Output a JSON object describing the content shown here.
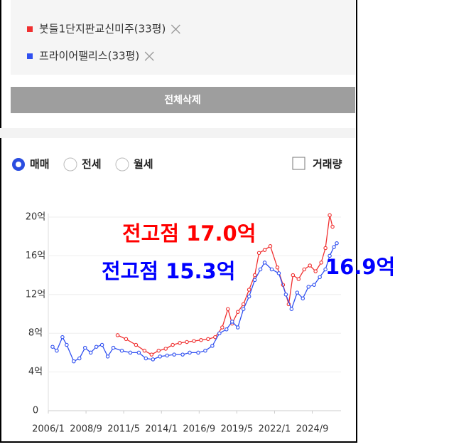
{
  "ui": {
    "button": "전체삭제",
    "radios": [
      "매매",
      "전세",
      "월세"
    ],
    "checkbox": "거래량"
  },
  "chart_data": {
    "type": "line",
    "annotations": [
      {
        "text": "전고점 17.0억",
        "color": "#ff0000"
      },
      {
        "text": "전고점 15.3억",
        "color": "#0000ff"
      },
      {
        "text": "16.9억",
        "color": "#0000ff"
      }
    ],
    "xlim": [
      2006,
      2026.7
    ],
    "xticks": [
      {
        "value": 2006.0,
        "label": "2006/1"
      },
      {
        "value": 2008.667,
        "label": "2008/9"
      },
      {
        "value": 2011.333,
        "label": "2011/5"
      },
      {
        "value": 2014.0,
        "label": "2014/1"
      },
      {
        "value": 2016.667,
        "label": "2016/9"
      },
      {
        "value": 2019.333,
        "label": "2019/5"
      },
      {
        "value": 2022.0,
        "label": "2022/1"
      },
      {
        "value": 2024.667,
        "label": "2024/9"
      }
    ],
    "ylim": [
      0,
      20
    ],
    "yticks": [
      0,
      {
        "value": 4,
        "label": "4억"
      },
      {
        "value": 8,
        "label": "8억"
      },
      {
        "value": 12,
        "label": "12억"
      },
      {
        "value": 16,
        "label": "16억"
      },
      {
        "value": 20,
        "label": "20억"
      }
    ],
    "grid": true,
    "series": [
      {
        "name": "붓들1단지판교신미주(33평)",
        "color": "#f03030",
        "x": [
          2010.9,
          2011.5,
          2012.2,
          2012.8,
          2013.3,
          2013.8,
          2014.3,
          2014.8,
          2015.3,
          2015.8,
          2016.3,
          2016.8,
          2017.3,
          2017.8,
          2018.3,
          2018.7,
          2019.0,
          2019.4,
          2019.8,
          2020.2,
          2020.6,
          2020.9,
          2021.3,
          2021.7,
          2022.2,
          2022.6,
          2023.0,
          2023.3,
          2023.7,
          2024.1,
          2024.5,
          2024.9,
          2025.3,
          2025.6,
          2025.9,
          2026.1
        ],
        "values": [
          7.8,
          7.4,
          6.8,
          6.2,
          5.8,
          6.2,
          6.4,
          6.8,
          7.0,
          7.1,
          7.2,
          7.3,
          7.4,
          7.6,
          8.6,
          10.5,
          9.0,
          10.2,
          11.0,
          12.5,
          14.0,
          16.3,
          16.6,
          17.0,
          14.8,
          13.0,
          11.0,
          14.0,
          13.6,
          14.6,
          15.0,
          14.4,
          15.3,
          16.8,
          20.2,
          19.0
        ]
      },
      {
        "name": "프라이어팰리스(33평)",
        "color": "#3050f0",
        "x": [
          2006.3,
          2006.6,
          2007.0,
          2007.3,
          2007.8,
          2008.2,
          2008.6,
          2009.0,
          2009.4,
          2009.8,
          2010.2,
          2010.6,
          2011.2,
          2011.8,
          2012.4,
          2012.9,
          2013.4,
          2013.9,
          2014.4,
          2014.9,
          2015.5,
          2016.0,
          2016.6,
          2017.1,
          2017.6,
          2018.1,
          2018.6,
          2019.0,
          2019.4,
          2019.8,
          2020.2,
          2020.6,
          2021.0,
          2021.3,
          2021.8,
          2022.3,
          2022.8,
          2023.2,
          2023.6,
          2024.0,
          2024.4,
          2024.8,
          2025.2,
          2025.6,
          2025.9,
          2026.2,
          2026.4
        ],
        "values": [
          6.6,
          6.2,
          7.6,
          6.8,
          5.1,
          5.4,
          6.5,
          6.0,
          6.6,
          6.8,
          5.6,
          6.5,
          6.2,
          6.0,
          6.0,
          5.4,
          5.3,
          5.6,
          5.7,
          5.8,
          5.8,
          6.0,
          6.0,
          6.2,
          6.7,
          8.0,
          8.4,
          9.2,
          8.6,
          10.5,
          11.8,
          13.5,
          14.6,
          15.3,
          14.6,
          14.2,
          12.0,
          10.5,
          12.2,
          11.6,
          12.8,
          13.0,
          13.8,
          14.6,
          16.0,
          16.9,
          17.3
        ]
      }
    ]
  }
}
